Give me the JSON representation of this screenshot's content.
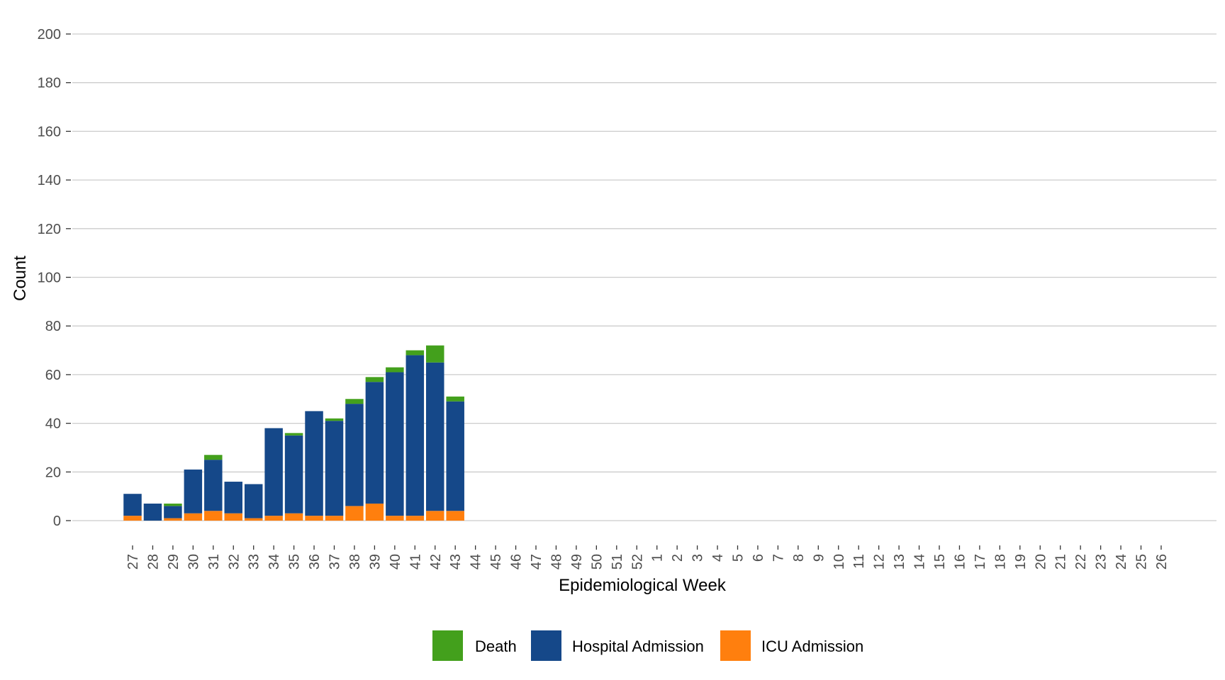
{
  "chart_data": {
    "type": "bar",
    "stacked": true,
    "title": "",
    "xlabel": "Epidemiological Week",
    "ylabel": "Count",
    "ylim": [
      0,
      200
    ],
    "yticks": [
      0,
      20,
      40,
      60,
      80,
      100,
      120,
      140,
      160,
      180,
      200
    ],
    "grid": "horizontal",
    "legend_position": "bottom",
    "categories": [
      "27",
      "28",
      "29",
      "30",
      "31",
      "32",
      "33",
      "34",
      "35",
      "36",
      "37",
      "38",
      "39",
      "40",
      "41",
      "42",
      "43",
      "44",
      "45",
      "46",
      "47",
      "48",
      "49",
      "50",
      "51",
      "52",
      "1",
      "2",
      "3",
      "4",
      "5",
      "6",
      "7",
      "8",
      "9",
      "10",
      "11",
      "12",
      "13",
      "14",
      "15",
      "16",
      "17",
      "18",
      "19",
      "20",
      "21",
      "22",
      "23",
      "24",
      "25",
      "26"
    ],
    "series": [
      {
        "name": "ICU Admission",
        "color": "#FF7F0E",
        "values": [
          2,
          0,
          1,
          3,
          4,
          3,
          1,
          2,
          3,
          2,
          2,
          6,
          7,
          2,
          2,
          4,
          4,
          0,
          0,
          0,
          0,
          0,
          0,
          0,
          0,
          0,
          0,
          0,
          0,
          0,
          0,
          0,
          0,
          0,
          0,
          0,
          0,
          0,
          0,
          0,
          0,
          0,
          0,
          0,
          0,
          0,
          0,
          0,
          0,
          0,
          0,
          0
        ]
      },
      {
        "name": "Hospital Admission",
        "color": "#154889",
        "values": [
          9,
          7,
          5,
          18,
          21,
          13,
          14,
          36,
          32,
          43,
          39,
          42,
          50,
          59,
          66,
          61,
          45,
          0,
          0,
          0,
          0,
          0,
          0,
          0,
          0,
          0,
          0,
          0,
          0,
          0,
          0,
          0,
          0,
          0,
          0,
          0,
          0,
          0,
          0,
          0,
          0,
          0,
          0,
          0,
          0,
          0,
          0,
          0,
          0,
          0,
          0,
          0
        ]
      },
      {
        "name": "Death",
        "color": "#43A01C",
        "values": [
          0,
          0,
          1,
          0,
          2,
          0,
          0,
          0,
          1,
          0,
          1,
          2,
          2,
          2,
          2,
          7,
          2,
          0,
          0,
          0,
          0,
          0,
          0,
          0,
          0,
          0,
          0,
          0,
          0,
          0,
          0,
          0,
          0,
          0,
          0,
          0,
          0,
          0,
          0,
          0,
          0,
          0,
          0,
          0,
          0,
          0,
          0,
          0,
          0,
          0,
          0,
          0
        ]
      }
    ],
    "legend_order": [
      "Death",
      "Hospital Admission",
      "ICU Admission"
    ]
  }
}
